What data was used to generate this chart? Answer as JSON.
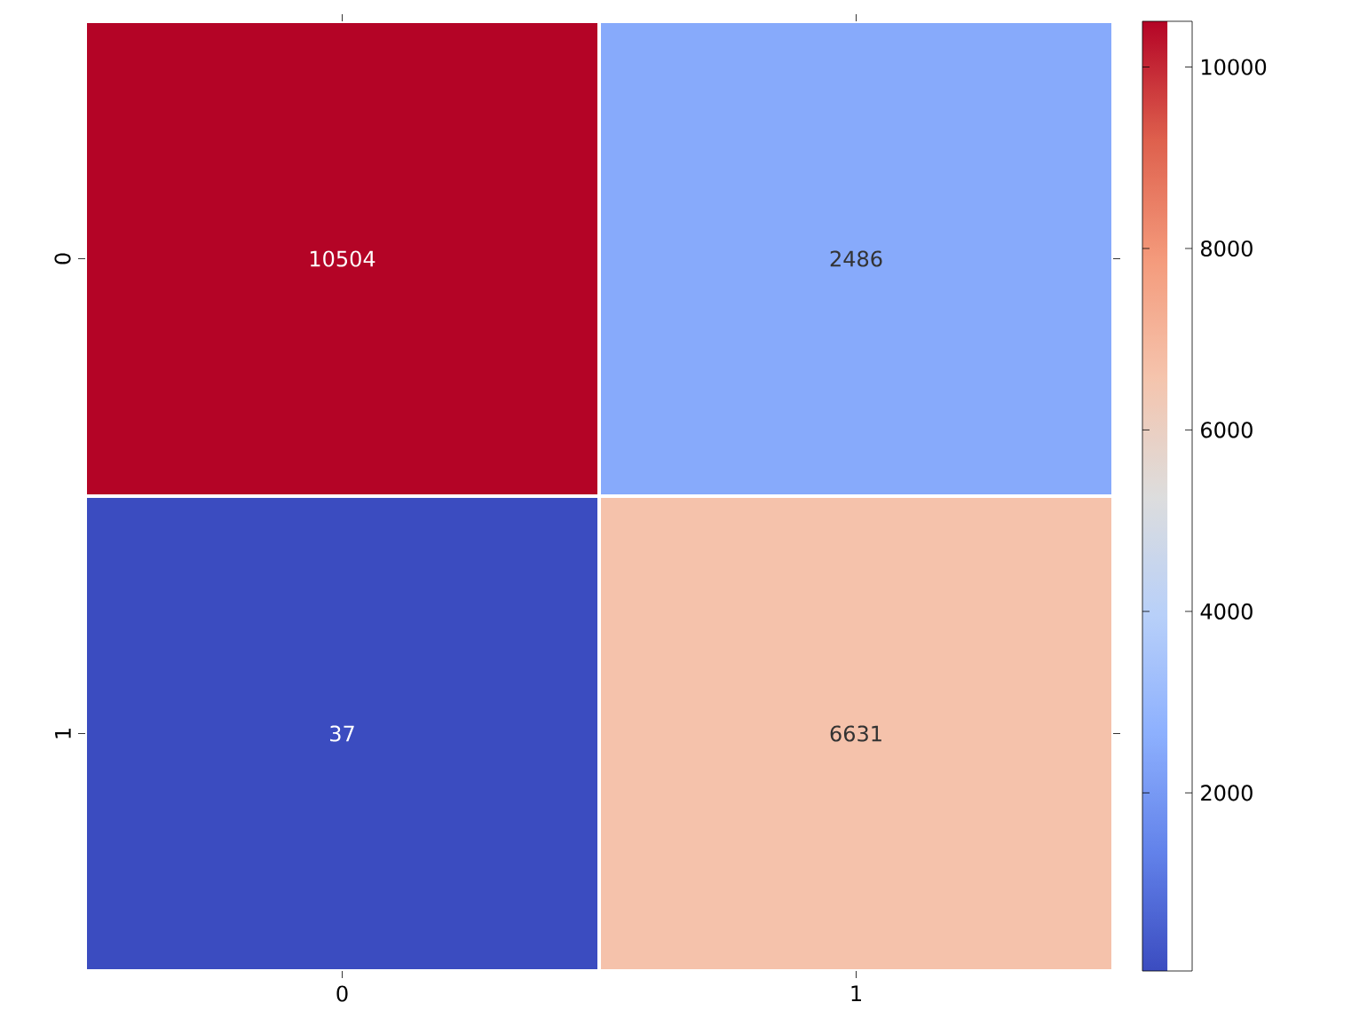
{
  "chart_data": {
    "type": "heatmap",
    "categories": [
      "0",
      "1"
    ],
    "y_categories": [
      "0",
      "1"
    ],
    "cells": [
      [
        10504,
        2486
      ],
      [
        37,
        6631
      ]
    ],
    "data_labels": true,
    "clim": [
      37,
      10504
    ],
    "cticks": [
      2000,
      4000,
      6000,
      8000,
      10000
    ]
  }
}
